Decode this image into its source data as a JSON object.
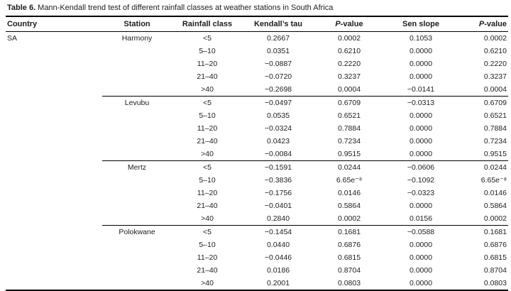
{
  "caption": {
    "label": "Table 6.",
    "text": "Mann-Kendall trend test of different rainfall classes at weather stations in South Africa"
  },
  "colors": {
    "text": "#1d1d1f",
    "rule": "#000000",
    "background": "#ffffff"
  },
  "table": {
    "columns": [
      {
        "key": "country",
        "label": "Country",
        "italic_first": false
      },
      {
        "key": "station",
        "label": "Station",
        "italic_first": false
      },
      {
        "key": "rainfall",
        "label": "Rainfall class",
        "italic_first": false
      },
      {
        "key": "tau",
        "label": "Kendall’s tau",
        "italic_first": false
      },
      {
        "key": "p1",
        "label": "P-value",
        "italic_first": true
      },
      {
        "key": "sen",
        "label": "Sen slope",
        "italic_first": false
      },
      {
        "key": "p2",
        "label": "P-value",
        "italic_first": true
      }
    ],
    "country": "SA",
    "stations": [
      {
        "name": "Harmony",
        "rows": [
          [
            "<5",
            "0.2667",
            "0.0002",
            "0.1053",
            "0.0002"
          ],
          [
            "5–10",
            "0.0351",
            "0.6210",
            "0.0000",
            "0.6210"
          ],
          [
            "11–20",
            "−0.0887",
            "0.2220",
            "0.0000",
            "0.2220"
          ],
          [
            "21–40",
            "−0.0720",
            "0.3237",
            "0.0000",
            "0.3237"
          ],
          [
            ">40",
            "−0.2698",
            "0.0004",
            "−0.0141",
            "0.0004"
          ]
        ]
      },
      {
        "name": "Levubu",
        "rows": [
          [
            "<5",
            "−0.0497",
            "0.6709",
            "−0.0313",
            "0.6709"
          ],
          [
            "5–10",
            "0.0535",
            "0.6521",
            "0.0000",
            "0.6521"
          ],
          [
            "11–20",
            "−0.0324",
            "0.7884",
            "0.0000",
            "0.7884"
          ],
          [
            "21–40",
            "0.0423",
            "0.7234",
            "0.0000",
            "0.7234"
          ],
          [
            ">40",
            "−0.0084",
            "0.9515",
            "0.0000",
            "0.9515"
          ]
        ]
      },
      {
        "name": "Mertz",
        "rows": [
          [
            "<5",
            "−0.1591",
            "0.0244",
            "−0.0606",
            "0.0244"
          ],
          [
            "5–10",
            "−0.3836",
            "6.65e⁻⁸",
            "−0.1092",
            "6.65e⁻⁸"
          ],
          [
            "11–20",
            "−0.1756",
            "0.0146",
            "−0.0323",
            "0.0146"
          ],
          [
            "21–40",
            "−0.0401",
            "0.5864",
            "0.0000",
            "0.5864"
          ],
          [
            ">40",
            "0.2840",
            "0.0002",
            "0.0156",
            "0.0002"
          ]
        ]
      },
      {
        "name": "Polokwane",
        "rows": [
          [
            "<5",
            "−0.1454",
            "0.1681",
            "−0.0588",
            "0.1681"
          ],
          [
            "5–10",
            "0.0440",
            "0.6876",
            "0.0000",
            "0.6876"
          ],
          [
            "11–20",
            "−0.0446",
            "0.6815",
            "0.0000",
            "0.6815"
          ],
          [
            "21–40",
            "0.0186",
            "0.8704",
            "0.0000",
            "0.8704"
          ],
          [
            ">40",
            "0.2001",
            "0.0803",
            "0.0000",
            "0.0803"
          ]
        ]
      }
    ]
  }
}
